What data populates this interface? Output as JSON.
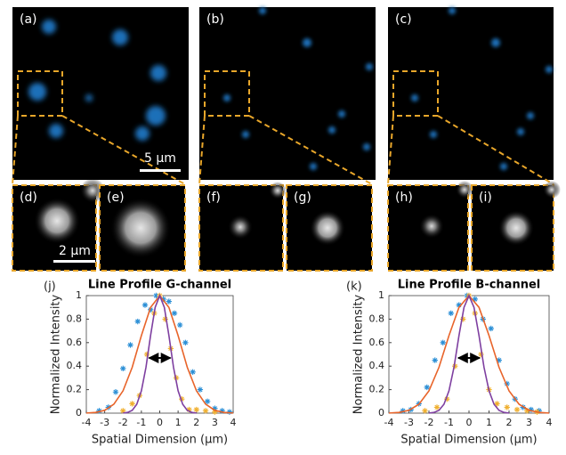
{
  "panels": {
    "labels": [
      "(a)",
      "(b)",
      "(c)",
      "(d)",
      "(e)",
      "(f)",
      "(g)",
      "(h)",
      "(i)"
    ],
    "scale_bars": [
      "5 µm",
      "2 µm"
    ]
  },
  "chart_data": [
    {
      "type": "line",
      "panel_label": "(j)",
      "title": "Line Profile G-channel",
      "x_label": "Spatial Dimension (µm)",
      "y_label": "Normalized Intensity",
      "xlim": [
        -4,
        4
      ],
      "xticks": [
        -4,
        -3,
        -2,
        -1,
        0,
        1,
        2,
        3,
        4
      ],
      "ylim": [
        0,
        1
      ],
      "yticks": [
        0,
        0.2,
        0.4,
        0.6,
        0.8,
        1
      ],
      "series": [
        {
          "type": "scatter",
          "color": "#2b8fd6",
          "x": [
            -3.3,
            -2.8,
            -2.4,
            -2,
            -1.6,
            -1.2,
            -0.8,
            -0.5,
            -0.2,
            0.2,
            0.5,
            0.8,
            1.1,
            1.4,
            1.8,
            2.2,
            2.6,
            3,
            3.4,
            3.8
          ],
          "values": [
            0.02,
            0.05,
            0.18,
            0.38,
            0.58,
            0.78,
            0.92,
            0.88,
            1.0,
            0.97,
            0.95,
            0.85,
            0.75,
            0.6,
            0.35,
            0.2,
            0.1,
            0.04,
            0.02,
            0.01
          ]
        },
        {
          "type": "scatter",
          "color": "#f0b030",
          "x": [
            -2,
            -1.5,
            -1.1,
            -0.7,
            -0.3,
            0,
            0.3,
            0.6,
            0.9,
            1.2,
            1.6,
            2,
            2.5,
            3
          ],
          "values": [
            0.02,
            0.08,
            0.15,
            0.5,
            0.85,
            1.0,
            0.8,
            0.55,
            0.3,
            0.12,
            0.03,
            0.03,
            0.02,
            0.01
          ]
        },
        {
          "type": "line",
          "color": "#e8642a",
          "x": [
            -4,
            -3.5,
            -3,
            -2.5,
            -2,
            -1.5,
            -1,
            -0.5,
            0,
            0.5,
            1,
            1.5,
            2,
            2.5,
            3,
            3.5,
            4
          ],
          "values": [
            0.001,
            0.006,
            0.024,
            0.076,
            0.19,
            0.39,
            0.66,
            0.9,
            1,
            0.9,
            0.66,
            0.39,
            0.19,
            0.076,
            0.024,
            0.006,
            0.001
          ]
        },
        {
          "type": "line",
          "color": "#7e3fa0",
          "x": [
            -2,
            -1.75,
            -1.5,
            -1.25,
            -1,
            -0.75,
            -0.5,
            -0.25,
            0,
            0.25,
            0.5,
            0.75,
            1,
            1.25,
            1.5,
            1.75,
            2
          ],
          "values": [
            0.001,
            0.006,
            0.024,
            0.076,
            0.19,
            0.39,
            0.66,
            0.9,
            1,
            0.9,
            0.66,
            0.39,
            0.19,
            0.076,
            0.024,
            0.006,
            0.001
          ]
        }
      ]
    },
    {
      "type": "line",
      "panel_label": "(k)",
      "title": "Line Profile B-channel",
      "x_label": "Spatial Dimension (µm)",
      "y_label": "Normalized Intensity",
      "xlim": [
        -4,
        4
      ],
      "xticks": [
        -4,
        -3,
        -2,
        -1,
        0,
        1,
        2,
        3,
        4
      ],
      "ylim": [
        0,
        1
      ],
      "yticks": [
        0,
        0.2,
        0.4,
        0.6,
        0.8,
        1
      ],
      "series": [
        {
          "type": "scatter",
          "color": "#2b8fd6",
          "x": [
            -3.3,
            -2.9,
            -2.5,
            -2.1,
            -1.7,
            -1.3,
            -0.9,
            -0.5,
            -0.1,
            0.3,
            0.7,
            1.1,
            1.5,
            1.9,
            2.3,
            2.7,
            3.1,
            3.5
          ],
          "values": [
            0.02,
            0.03,
            0.08,
            0.22,
            0.45,
            0.6,
            0.85,
            0.92,
            1.0,
            0.97,
            0.8,
            0.72,
            0.45,
            0.25,
            0.12,
            0.05,
            0.03,
            0.02
          ]
        },
        {
          "type": "scatter",
          "color": "#f0b030",
          "x": [
            -2.2,
            -1.6,
            -1.1,
            -0.7,
            -0.3,
            0,
            0.3,
            0.6,
            1.0,
            1.4,
            1.9,
            2.4,
            2.9,
            3.4
          ],
          "values": [
            0.02,
            0.05,
            0.12,
            0.4,
            0.8,
            1.0,
            0.85,
            0.5,
            0.2,
            0.08,
            0.05,
            0.03,
            0.02,
            0.01
          ]
        },
        {
          "type": "line",
          "color": "#e8642a",
          "x": [
            -4,
            -3.5,
            -3,
            -2.5,
            -2,
            -1.5,
            -1,
            -0.5,
            0,
            0.5,
            1,
            1.5,
            2,
            2.5,
            3,
            3.5,
            4
          ],
          "values": [
            0.001,
            0.006,
            0.024,
            0.076,
            0.19,
            0.39,
            0.66,
            0.9,
            1,
            0.9,
            0.66,
            0.39,
            0.19,
            0.076,
            0.024,
            0.006,
            0.001
          ]
        },
        {
          "type": "line",
          "color": "#7e3fa0",
          "x": [
            -2,
            -1.75,
            -1.5,
            -1.25,
            -1,
            -0.75,
            -0.5,
            -0.25,
            0,
            0.25,
            0.5,
            0.75,
            1,
            1.25,
            1.5,
            1.75,
            2
          ],
          "values": [
            0.001,
            0.006,
            0.024,
            0.076,
            0.19,
            0.39,
            0.66,
            0.9,
            1,
            0.9,
            0.66,
            0.39,
            0.19,
            0.076,
            0.024,
            0.006,
            0.001
          ]
        }
      ]
    }
  ]
}
